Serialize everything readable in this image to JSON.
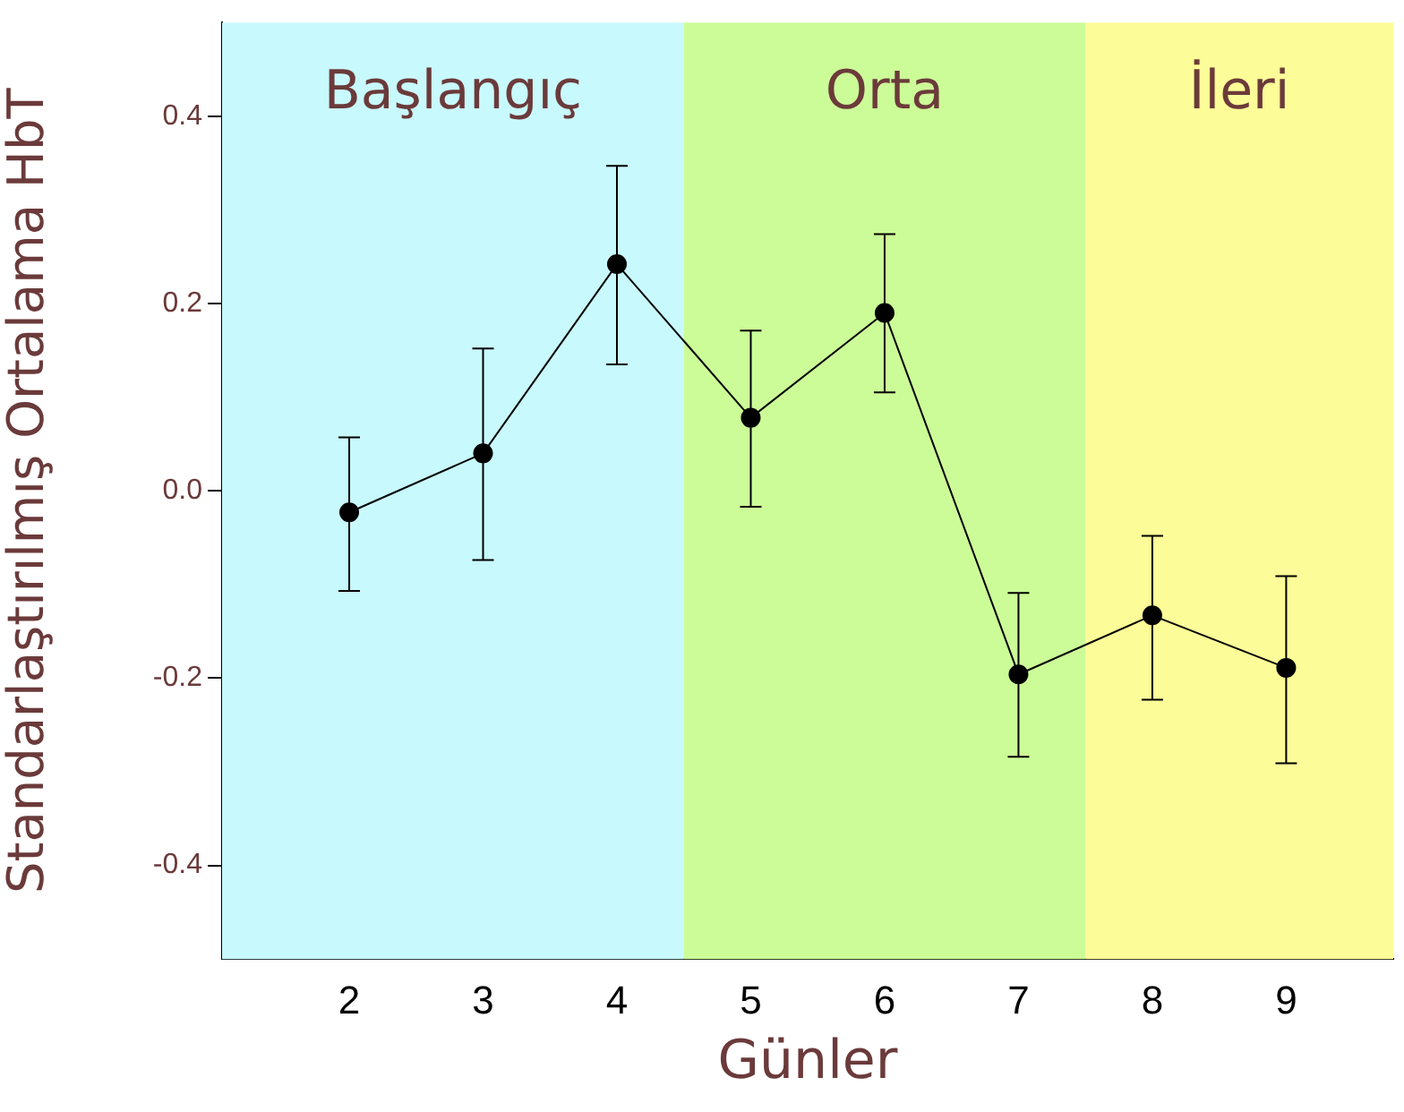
{
  "chart_data": {
    "type": "line",
    "xlabel": "Günler",
    "ylabel": "Standarlaştırılmış Ortalama HbT",
    "x": [
      2,
      3,
      4,
      5,
      6,
      7,
      8,
      9
    ],
    "series": [
      {
        "color": "#000000",
        "values": [
          -0.023,
          0.04,
          0.242,
          0.078,
          0.19,
          -0.196,
          -0.133,
          -0.189
        ],
        "errors": [
          [
            -0.107,
            0.057
          ],
          [
            -0.074,
            0.152
          ],
          [
            0.135,
            0.347
          ],
          [
            -0.017,
            0.171
          ],
          [
            0.105,
            0.274
          ],
          [
            -0.284,
            -0.109
          ],
          [
            -0.223,
            -0.048
          ],
          [
            -0.291,
            -0.091
          ]
        ]
      }
    ],
    "xlim": [
      1.05,
      9.8
    ],
    "xticks": [
      2,
      3,
      4,
      5,
      6,
      7,
      8,
      9
    ],
    "ylim": [
      -0.5,
      0.5
    ],
    "yticks": [
      {
        "value": -0.4,
        "label": "-0.4"
      },
      {
        "value": -0.2,
        "label": "-0.2"
      },
      {
        "value": 0,
        "label": "0.0"
      },
      {
        "value": 0.2,
        "label": "0.2"
      },
      {
        "value": 0.4,
        "label": "0.4"
      }
    ],
    "bands": [
      {
        "axis": "x",
        "from": 1.05,
        "to": 4.5,
        "label": "Başlangıç",
        "color": "#c8f9fc"
      },
      {
        "axis": "x",
        "from": 4.5,
        "to": 7.5,
        "label": "Orta",
        "color": "#ccfc98"
      },
      {
        "axis": "x",
        "from": 7.5,
        "to": 9.8,
        "label": "İleri",
        "color": "#fcfc98"
      }
    ],
    "grid": false,
    "legend": false,
    "marker": "circle",
    "line_style": "solid"
  }
}
